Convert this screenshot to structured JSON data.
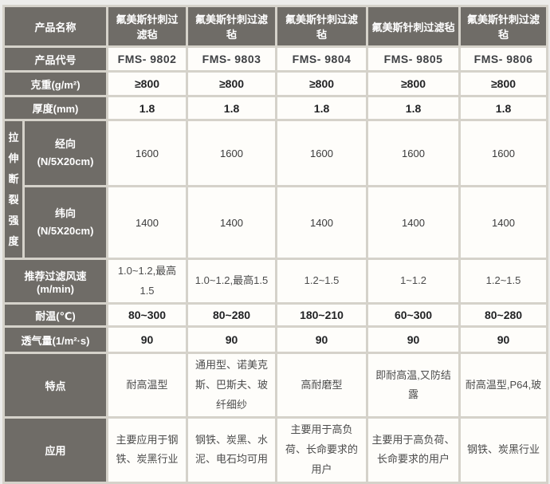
{
  "colors": {
    "page_bg": "#ececea",
    "grid": "#d5d2ca",
    "header_bg": "#6f6c67",
    "header_fg": "#ffffff",
    "cell_bg": "#fefdfa"
  },
  "table": {
    "rows": {
      "product_name": {
        "label": "产品名称",
        "values": [
          "氟美斯针刺过滤毡",
          "氟美斯针刺过滤毡",
          "氟美斯针刺过滤毡",
          "氟美斯针刺过滤毡",
          "氟美斯针刺过滤毡"
        ]
      },
      "product_code": {
        "label": "产品代号",
        "values": [
          "FMS- 9802",
          "FMS- 9803",
          "FMS- 9804",
          "FMS- 9805",
          "FMS- 9806"
        ]
      },
      "weight": {
        "label": "克重(g/m²)",
        "values": [
          "≥800",
          "≥800",
          "≥800",
          "≥800",
          "≥800"
        ]
      },
      "thickness": {
        "label": "厚度(mm)",
        "values": [
          "1.8",
          "1.8",
          "1.8",
          "1.8",
          "1.8"
        ]
      },
      "tensile": {
        "group_label": "拉伸断裂强度",
        "warp": {
          "label": "经向\n(N/5X20cm)",
          "values": [
            "1600",
            "1600",
            "1600",
            "1600",
            "1600"
          ]
        },
        "weft": {
          "label": "纬向\n(N/5X20cm)",
          "values": [
            "1400",
            "1400",
            "1400",
            "1400",
            "1400"
          ]
        }
      },
      "filter_speed": {
        "label": "推荐过滤风速(m/min)",
        "values": [
          "1.0~1.2,最高1.5",
          "1.0~1.2,最高1.5",
          "1.2~1.5",
          "1~1.2",
          "1.2~1.5"
        ]
      },
      "temperature": {
        "label": "耐温(℃)",
        "values": [
          "80~300",
          "80~280",
          "180~210",
          "60~300",
          "80~280"
        ]
      },
      "permeability": {
        "label": "透气量(1/m²·s)",
        "values": [
          "90",
          "90",
          "90",
          "90",
          "90"
        ]
      },
      "features": {
        "label": "特点",
        "values": [
          "耐高温型",
          "通用型、诺美克斯、巴斯夫、玻纤细纱",
          "高耐磨型",
          "即耐高温,又防结露",
          "耐高温型,P64,玻"
        ]
      },
      "application": {
        "label": "应用",
        "values": [
          "主要应用于钢铁、炭黑行业",
          "钢铁、炭黑、水泥、电石均可用",
          "主要用于高负荷、长命要求的用户",
          "主要用于高负荷、长命要求的用户",
          "钢铁、炭黑行业"
        ]
      }
    }
  }
}
